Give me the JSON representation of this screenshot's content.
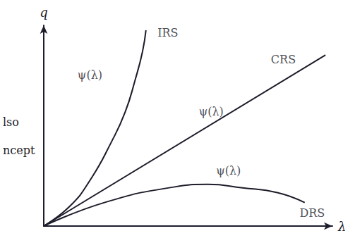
{
  "chart_data": {
    "type": "line",
    "x_label": "λ",
    "y_label": "q",
    "xlim": [
      0,
      10
    ],
    "ylim": [
      0,
      10.5
    ],
    "tick_labels": false,
    "grid": false,
    "series": [
      {
        "name": "IRS",
        "color": "#1c1c2a",
        "line_style": "solid",
        "x": [
          0,
          0.91,
          1.63,
          2.34,
          2.82,
          3.18,
          3.42,
          3.54
        ],
        "values": [
          0,
          1.05,
          2.46,
          4.39,
          5.96,
          7.72,
          9.12,
          10.25
        ]
      },
      {
        "name": "CRS",
        "color": "#1c1c2a",
        "line_style": "solid",
        "x": [
          0,
          9.76
        ],
        "values": [
          0,
          8.95
        ]
      },
      {
        "name": "DRS",
        "color": "#1c1c2a",
        "line_style": "solid",
        "x": [
          0,
          2.1,
          4.5,
          5.69,
          6.89,
          8.09,
          9.04
        ],
        "values": [
          0,
          1.23,
          2.04,
          2.18,
          2.0,
          1.75,
          1.23
        ]
      }
    ],
    "annotations": [
      {
        "text": "IRS",
        "x": 4.3,
        "y": 10.1
      },
      {
        "text": "CRS",
        "x": 8.3,
        "y": 8.7
      },
      {
        "text": "DRS",
        "x": 9.3,
        "y": 0.7
      },
      {
        "text": "ψ(λ)",
        "x": 1.6,
        "y": 7.9
      },
      {
        "text": "ψ(λ)",
        "x": 5.8,
        "y": 6.0
      },
      {
        "text": "ψ(λ)",
        "x": 6.4,
        "y": 2.9
      }
    ],
    "margin_notes": [
      "lso",
      "ncept"
    ]
  }
}
